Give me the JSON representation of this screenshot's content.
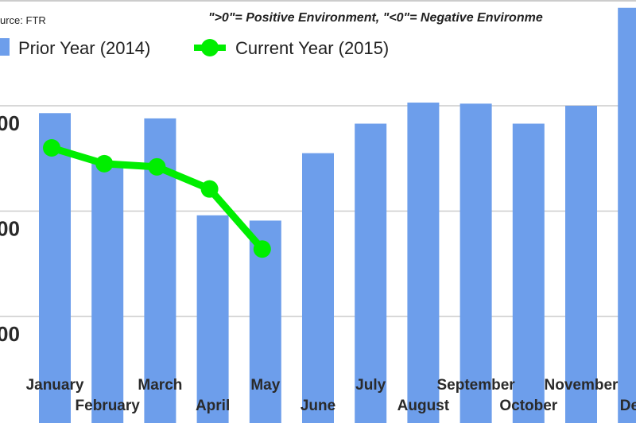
{
  "chart_data": {
    "type": "bar",
    "source": "urce: FTR",
    "annotation": "\">0\"= Positive Environment, \"<0\"= Negative Environme",
    "categories": [
      "January",
      "February",
      "March",
      "April",
      "May",
      "June",
      "July",
      "August",
      "September",
      "October",
      "November",
      "Dec"
    ],
    "series": [
      {
        "name": "Prior Year (2014)",
        "type": "bar",
        "color": "#6d9eeb",
        "values": [
          2.93,
          2.46,
          2.88,
          1.96,
          1.91,
          2.55,
          2.83,
          3.03,
          3.02,
          2.83,
          3.0,
          3.93
        ]
      },
      {
        "name": "Current Year (2015)",
        "type": "line",
        "color": "#00ee00",
        "values": [
          2.6,
          2.45,
          2.42,
          2.21,
          1.64,
          null,
          null,
          null,
          null,
          null,
          null,
          null
        ]
      }
    ],
    "y_ticks": [
      {
        "value": 3,
        "label": "00"
      },
      {
        "value": 2,
        "label": "00"
      },
      {
        "value": 1,
        "label": "00"
      }
    ],
    "ylim": [
      0,
      4
    ],
    "grid": true,
    "legend_placement": "top-left",
    "xlabel": "",
    "ylabel": ""
  }
}
